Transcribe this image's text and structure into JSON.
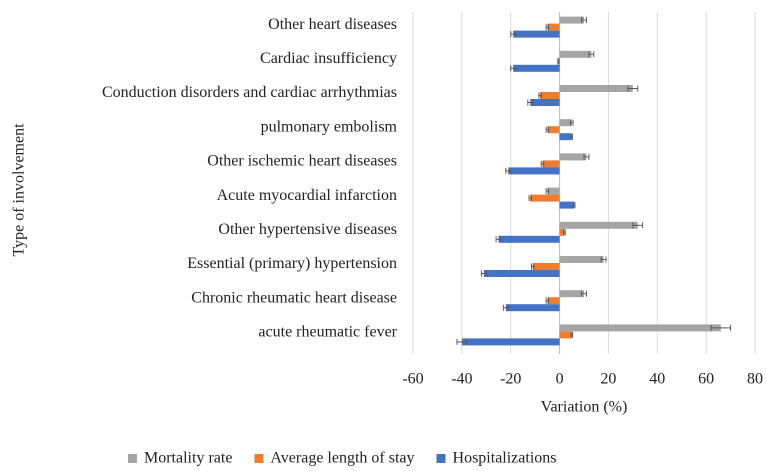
{
  "chart_data": {
    "type": "hbar",
    "y_label": "Type of involvement",
    "x_label": "Variation (%)",
    "categories": [
      "Other heart diseases",
      "Cardiac insufficiency",
      "Conduction disorders and cardiac arrhythmias",
      "pulmonary embolism",
      "Other ischemic heart diseases",
      "Acute myocardial infarction",
      "Other hypertensive diseases",
      "Essential (primary) hypertension",
      "Chronic rheumatic heart disease",
      "acute rheumatic fever"
    ],
    "series": [
      {
        "name": "Mortality rate",
        "color": "#a5a5a5",
        "values": [
          10,
          13,
          30,
          5,
          11,
          -5,
          32,
          18,
          10,
          66
        ],
        "errors": [
          1,
          1,
          2,
          0.5,
          1,
          0.5,
          2,
          1,
          1,
          4
        ]
      },
      {
        "name": "Average length of stay",
        "color": "#ed7d31",
        "values": [
          -5,
          -0.5,
          -8,
          -5,
          -7,
          -12,
          2,
          -11,
          -5,
          5
        ],
        "errors": [
          0.5,
          0.2,
          0.5,
          0.5,
          0.5,
          0.5,
          0.3,
          0.5,
          0.5,
          0.3
        ]
      },
      {
        "name": "Hospitalizations",
        "color": "#4472c4",
        "values": [
          -19,
          -19,
          -12,
          5,
          -21,
          6,
          -25,
          -31,
          -22,
          -40
        ],
        "errors": [
          1,
          1,
          1,
          0.3,
          1,
          0.3,
          1,
          1,
          1,
          2
        ]
      }
    ],
    "xlim": [
      -60,
      80
    ],
    "xticks": [
      -60,
      -40,
      -20,
      0,
      20,
      40,
      60,
      80
    ],
    "grid": true,
    "legend": "bottom"
  }
}
